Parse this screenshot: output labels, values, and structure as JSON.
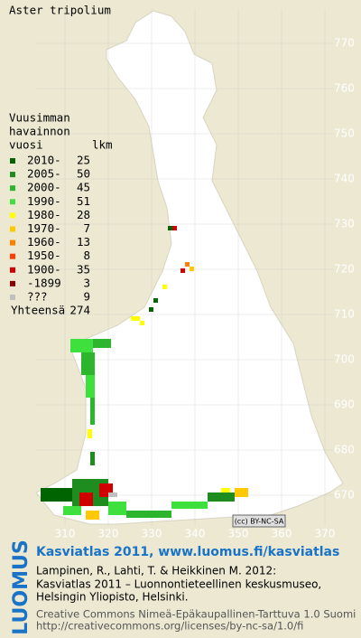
{
  "title": "Aster tripolium",
  "legend": {
    "heading": [
      "Vuusimman",
      "havainnon"
    ],
    "col_period": "vuosi",
    "col_count": "lkm",
    "rows": [
      {
        "label": "2010-",
        "count": 25,
        "color": "#006400"
      },
      {
        "label": "2005-",
        "count": 50,
        "color": "#1e8c1e"
      },
      {
        "label": "2000-",
        "count": 45,
        "color": "#2db52d"
      },
      {
        "label": "1990-",
        "count": 51,
        "color": "#3ee03e"
      },
      {
        "label": "1980-",
        "count": 28,
        "color": "#ffff00"
      },
      {
        "label": "1970-",
        "count": 7,
        "color": "#ffc800"
      },
      {
        "label": "1960-",
        "count": 13,
        "color": "#ff8000"
      },
      {
        "label": "1950-",
        "count": 8,
        "color": "#ff3c00"
      },
      {
        "label": "1900-",
        "count": 35,
        "color": "#d00000"
      },
      {
        "label": "-1899",
        "count": 3,
        "color": "#8b0000"
      },
      {
        "label": "???",
        "count": 9,
        "color": "#c0c0c0"
      }
    ],
    "total_label": "Yhteensä",
    "total": 274
  },
  "grid": {
    "north": [
      770,
      760,
      750,
      740,
      730,
      720,
      710,
      700,
      690,
      680,
      670
    ],
    "east": [
      310,
      320,
      330,
      340,
      350,
      360,
      370
    ]
  },
  "license_badge": "(cc) BY-NC-SA",
  "footer": {
    "logo": "LUOMUS",
    "headline": "Kasviatlas 2011, www.luomus.fi/kasviatlas",
    "citation": [
      "Lampinen, R., Lahti, T. & Heikkinen M. 2012:",
      "Kasviatlas 2011 – Luonnontieteellinen keskusmuseo,",
      "Helsingin Yliopisto, Helsinki."
    ],
    "license": [
      "Creative Commons Nimeä-Epäkaupallinen-Tarttuva 1.0 Suomi",
      "http://creativecommons.org/licenses/by-nc-sa/1.0/fi"
    ]
  }
}
